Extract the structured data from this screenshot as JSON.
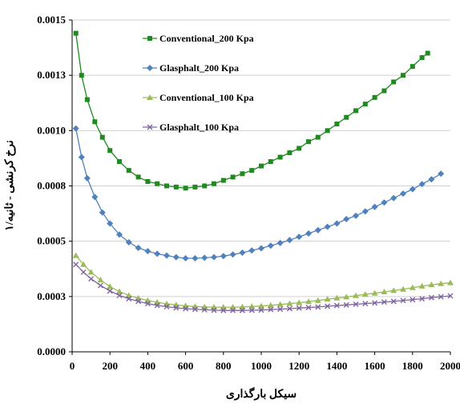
{
  "chart_data": {
    "type": "line",
    "title": "",
    "xlabel": "سیکل بارگذاری",
    "ylabel": "نرخ کرنشی - ثانیه/۱",
    "xlim": [
      0,
      2000
    ],
    "ylim": [
      0,
      0.0015
    ],
    "x_ticks": [
      "0",
      "200",
      "400",
      "600",
      "800",
      "1000",
      "1200",
      "1400",
      "1600",
      "1800",
      "2000"
    ],
    "y_ticks": [
      "0.0000",
      "0.0003",
      "0.0005",
      "0.0008",
      "0.0010",
      "0.0013",
      "0.0015"
    ],
    "grid": "horizontal",
    "legend_position": "top-left-inside",
    "series": [
      {
        "name": "Conventional_200 Kpa",
        "color": "#1f8a1f",
        "marker": "square",
        "points": [
          [
            20,
            0.00144
          ],
          [
            50,
            0.00125
          ],
          [
            80,
            0.00114
          ],
          [
            120,
            0.00104
          ],
          [
            160,
            0.00097
          ],
          [
            200,
            0.00091
          ],
          [
            250,
            0.00086
          ],
          [
            300,
            0.00082
          ],
          [
            350,
            0.00079
          ],
          [
            400,
            0.00077
          ],
          [
            450,
            0.00076
          ],
          [
            500,
            0.00075
          ],
          [
            550,
            0.000745
          ],
          [
            600,
            0.00074
          ],
          [
            650,
            0.000745
          ],
          [
            700,
            0.00075
          ],
          [
            750,
            0.00076
          ],
          [
            800,
            0.000775
          ],
          [
            850,
            0.00079
          ],
          [
            900,
            0.000805
          ],
          [
            950,
            0.00082
          ],
          [
            1000,
            0.00084
          ],
          [
            1050,
            0.00086
          ],
          [
            1100,
            0.00088
          ],
          [
            1150,
            0.0009
          ],
          [
            1200,
            0.00092
          ],
          [
            1250,
            0.00095
          ],
          [
            1300,
            0.00097
          ],
          [
            1350,
            0.001
          ],
          [
            1400,
            0.00103
          ],
          [
            1450,
            0.00106
          ],
          [
            1500,
            0.00109
          ],
          [
            1550,
            0.00112
          ],
          [
            1600,
            0.00115
          ],
          [
            1650,
            0.00118
          ],
          [
            1700,
            0.00122
          ],
          [
            1750,
            0.00125
          ],
          [
            1800,
            0.00129
          ],
          [
            1850,
            0.00133
          ],
          [
            1880,
            0.00135
          ]
        ]
      },
      {
        "name": "Glasphalt_200 Kpa",
        "color": "#4f81bd",
        "marker": "diamond",
        "points": [
          [
            20,
            0.00101
          ],
          [
            50,
            0.00088
          ],
          [
            80,
            0.000785
          ],
          [
            120,
            0.0007
          ],
          [
            160,
            0.00063
          ],
          [
            200,
            0.00058
          ],
          [
            250,
            0.00053
          ],
          [
            300,
            0.000495
          ],
          [
            350,
            0.00047
          ],
          [
            400,
            0.000455
          ],
          [
            450,
            0.000443
          ],
          [
            500,
            0.000435
          ],
          [
            550,
            0.000428
          ],
          [
            600,
            0.000423
          ],
          [
            650,
            0.000423
          ],
          [
            700,
            0.000425
          ],
          [
            750,
            0.000428
          ],
          [
            800,
            0.000433
          ],
          [
            850,
            0.00044
          ],
          [
            900,
            0.000448
          ],
          [
            950,
            0.000458
          ],
          [
            1000,
            0.000468
          ],
          [
            1050,
            0.00048
          ],
          [
            1100,
            0.000492
          ],
          [
            1150,
            0.000505
          ],
          [
            1200,
            0.00052
          ],
          [
            1250,
            0.000535
          ],
          [
            1300,
            0.00055
          ],
          [
            1350,
            0.000565
          ],
          [
            1400,
            0.00058
          ],
          [
            1450,
            0.0006
          ],
          [
            1500,
            0.000615
          ],
          [
            1550,
            0.000635
          ],
          [
            1600,
            0.000655
          ],
          [
            1650,
            0.000675
          ],
          [
            1700,
            0.000695
          ],
          [
            1750,
            0.000715
          ],
          [
            1800,
            0.000735
          ],
          [
            1850,
            0.000758
          ],
          [
            1900,
            0.00078
          ],
          [
            1950,
            0.000805
          ]
        ]
      },
      {
        "name": "Conventional_100 Kpa",
        "color": "#9bbb59",
        "marker": "triangle",
        "points": [
          [
            20,
            0.000435
          ],
          [
            60,
            0.000395
          ],
          [
            100,
            0.00036
          ],
          [
            150,
            0.000325
          ],
          [
            200,
            0.000295
          ],
          [
            250,
            0.000272
          ],
          [
            300,
            0.000255
          ],
          [
            350,
            0.000242
          ],
          [
            400,
            0.000232
          ],
          [
            450,
            0.000224
          ],
          [
            500,
            0.000217
          ],
          [
            550,
            0.000212
          ],
          [
            600,
            0.000208
          ],
          [
            650,
            0.000205
          ],
          [
            700,
            0.000203
          ],
          [
            750,
            0.000202
          ],
          [
            800,
            0.000202
          ],
          [
            850,
            0.000202
          ],
          [
            900,
            0.000203
          ],
          [
            950,
            0.000205
          ],
          [
            1000,
            0.000207
          ],
          [
            1050,
            0.00021
          ],
          [
            1100,
            0.000214
          ],
          [
            1150,
            0.000218
          ],
          [
            1200,
            0.000222
          ],
          [
            1250,
            0.000227
          ],
          [
            1300,
            0.000232
          ],
          [
            1350,
            0.000238
          ],
          [
            1400,
            0.000243
          ],
          [
            1450,
            0.000248
          ],
          [
            1500,
            0.000254
          ],
          [
            1550,
            0.00026
          ],
          [
            1600,
            0.000265
          ],
          [
            1650,
            0.000271
          ],
          [
            1700,
            0.000277
          ],
          [
            1750,
            0.000283
          ],
          [
            1800,
            0.00029
          ],
          [
            1850,
            0.000297
          ],
          [
            1900,
            0.000303
          ],
          [
            1950,
            0.000308
          ],
          [
            2000,
            0.000312
          ]
        ]
      },
      {
        "name": "Glasphalt_100 Kpa",
        "color": "#8064a2",
        "marker": "cross",
        "points": [
          [
            20,
            0.000395
          ],
          [
            60,
            0.00036
          ],
          [
            100,
            0.00033
          ],
          [
            150,
            0.0003
          ],
          [
            200,
            0.000275
          ],
          [
            250,
            0.000255
          ],
          [
            300,
            0.00024
          ],
          [
            350,
            0.000228
          ],
          [
            400,
            0.000218
          ],
          [
            450,
            0.00021
          ],
          [
            500,
            0.000204
          ],
          [
            550,
            0.000199
          ],
          [
            600,
            0.000195
          ],
          [
            650,
            0.000192
          ],
          [
            700,
            0.00019
          ],
          [
            750,
            0.000188
          ],
          [
            800,
            0.000187
          ],
          [
            850,
            0.000187
          ],
          [
            900,
            0.000187
          ],
          [
            950,
            0.000188
          ],
          [
            1000,
            0.000189
          ],
          [
            1050,
            0.000191
          ],
          [
            1100,
            0.000193
          ],
          [
            1150,
            0.000195
          ],
          [
            1200,
            0.000198
          ],
          [
            1250,
            0.0002
          ],
          [
            1300,
            0.000203
          ],
          [
            1350,
            0.000206
          ],
          [
            1400,
            0.000209
          ],
          [
            1450,
            0.000212
          ],
          [
            1500,
            0.000215
          ],
          [
            1550,
            0.000218
          ],
          [
            1600,
            0.000221
          ],
          [
            1650,
            0.000225
          ],
          [
            1700,
            0.000228
          ],
          [
            1750,
            0.000232
          ],
          [
            1800,
            0.000236
          ],
          [
            1850,
            0.00024
          ],
          [
            1900,
            0.000245
          ],
          [
            1950,
            0.000249
          ],
          [
            2000,
            0.000253
          ]
        ]
      }
    ]
  }
}
